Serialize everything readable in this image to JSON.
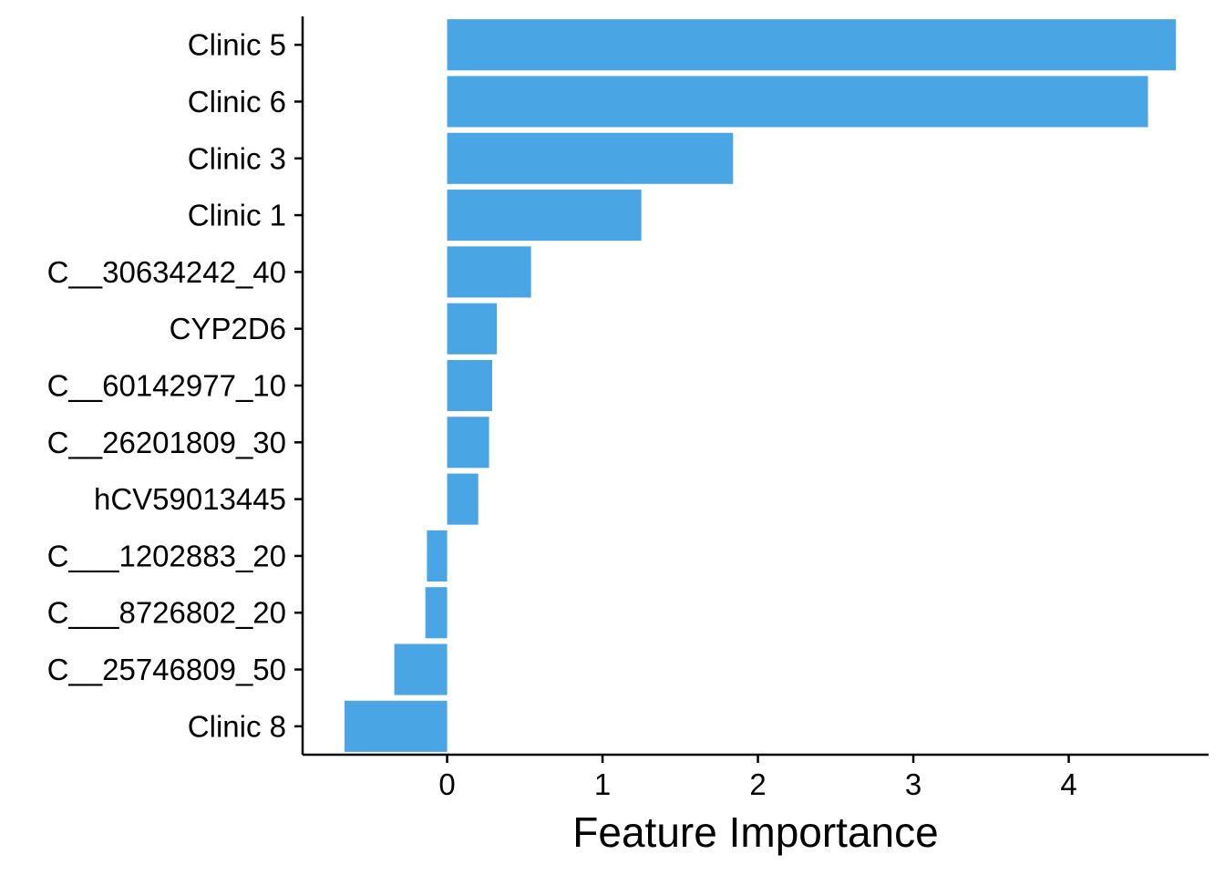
{
  "chart_data": {
    "type": "bar",
    "orientation": "horizontal",
    "categories": [
      "Clinic 5",
      "Clinic 6",
      "Clinic 3",
      "Clinic 1",
      "C__30634242_40",
      "CYP2D6",
      "C__60142977_10",
      "C__26201809_30",
      "hCV59013445",
      "C___1202883_20",
      "C___8726802_20",
      "C__25746809_50",
      "Clinic 8"
    ],
    "values": [
      4.69,
      4.51,
      1.84,
      1.25,
      0.54,
      0.32,
      0.29,
      0.27,
      0.2,
      -0.13,
      -0.14,
      -0.34,
      -0.66
    ],
    "xlabel": "Feature Importance",
    "ylabel": "",
    "xlim": [
      -0.93,
      4.9
    ],
    "xticks": [
      0,
      1,
      2,
      3,
      4
    ],
    "bar_color": "#49A5E3",
    "grid": false,
    "legend": "none"
  }
}
